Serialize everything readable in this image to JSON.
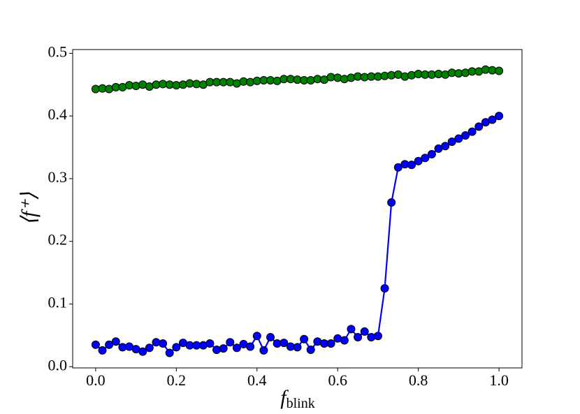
{
  "chart_data": {
    "type": "line",
    "xlabel": {
      "base": "f",
      "sub": "blink"
    },
    "ylabel": "⟨f⁺⟩",
    "x": [
      0,
      0.0167,
      0.0333,
      0.05,
      0.0667,
      0.0833,
      0.1,
      0.1167,
      0.1333,
      0.15,
      0.1667,
      0.1833,
      0.2,
      0.2167,
      0.2333,
      0.25,
      0.2667,
      0.2833,
      0.3,
      0.3167,
      0.3333,
      0.35,
      0.3667,
      0.3833,
      0.4,
      0.4167,
      0.4333,
      0.45,
      0.4667,
      0.4833,
      0.5,
      0.5167,
      0.5333,
      0.55,
      0.5667,
      0.5833,
      0.6,
      0.6167,
      0.6333,
      0.65,
      0.6667,
      0.6833,
      0.7,
      0.7167,
      0.7333,
      0.75,
      0.7667,
      0.7833,
      0.8,
      0.8167,
      0.8333,
      0.85,
      0.8667,
      0.8833,
      0.9,
      0.9167,
      0.9333,
      0.95,
      0.9667,
      0.9833,
      1
    ],
    "series": [
      {
        "color": "#0000ff",
        "values": [
          0.035,
          0.026,
          0.035,
          0.04,
          0.031,
          0.032,
          0.028,
          0.024,
          0.03,
          0.039,
          0.037,
          0.022,
          0.031,
          0.038,
          0.034,
          0.034,
          0.034,
          0.037,
          0.027,
          0.029,
          0.039,
          0.03,
          0.036,
          0.032,
          0.049,
          0.026,
          0.047,
          0.037,
          0.038,
          0.032,
          0.031,
          0.044,
          0.027,
          0.04,
          0.037,
          0.037,
          0.045,
          0.042,
          0.06,
          0.047,
          0.056,
          0.047,
          0.049,
          0.125,
          0.262,
          0.318,
          0.323,
          0.322,
          0.328,
          0.333,
          0.339,
          0.348,
          0.352,
          0.359,
          0.364,
          0.369,
          0.375,
          0.383,
          0.39,
          0.394,
          0.4
        ]
      },
      {
        "color": "#008000",
        "values": [
          0.443,
          0.444,
          0.443,
          0.446,
          0.446,
          0.449,
          0.448,
          0.45,
          0.447,
          0.45,
          0.451,
          0.45,
          0.449,
          0.45,
          0.452,
          0.451,
          0.45,
          0.454,
          0.454,
          0.454,
          0.454,
          0.452,
          0.455,
          0.454,
          0.456,
          0.457,
          0.457,
          0.456,
          0.459,
          0.459,
          0.458,
          0.457,
          0.457,
          0.459,
          0.458,
          0.462,
          0.461,
          0.459,
          0.461,
          0.463,
          0.462,
          0.463,
          0.463,
          0.464,
          0.465,
          0.466,
          0.463,
          0.465,
          0.467,
          0.466,
          0.466,
          0.467,
          0.466,
          0.469,
          0.468,
          0.469,
          0.471,
          0.471,
          0.474,
          0.473,
          0.472
        ]
      }
    ],
    "xlim": [
      -0.057,
      1.057
    ],
    "ylim": [
      -0.002,
      0.506
    ],
    "xticks": [
      {
        "value": 0,
        "label": "0.0"
      },
      {
        "value": 0.2,
        "label": "0.2"
      },
      {
        "value": 0.4,
        "label": "0.4"
      },
      {
        "value": 0.6,
        "label": "0.6"
      },
      {
        "value": 0.8,
        "label": "0.8"
      },
      {
        "value": 1,
        "label": "1.0"
      }
    ],
    "yticks": [
      {
        "value": 0,
        "label": "0.0"
      },
      {
        "value": 0.1,
        "label": "0.1"
      },
      {
        "value": 0.2,
        "label": "0.2"
      },
      {
        "value": 0.3,
        "label": "0.3"
      },
      {
        "value": 0.4,
        "label": "0.4"
      },
      {
        "value": 0.5,
        "label": "0.5"
      }
    ]
  }
}
